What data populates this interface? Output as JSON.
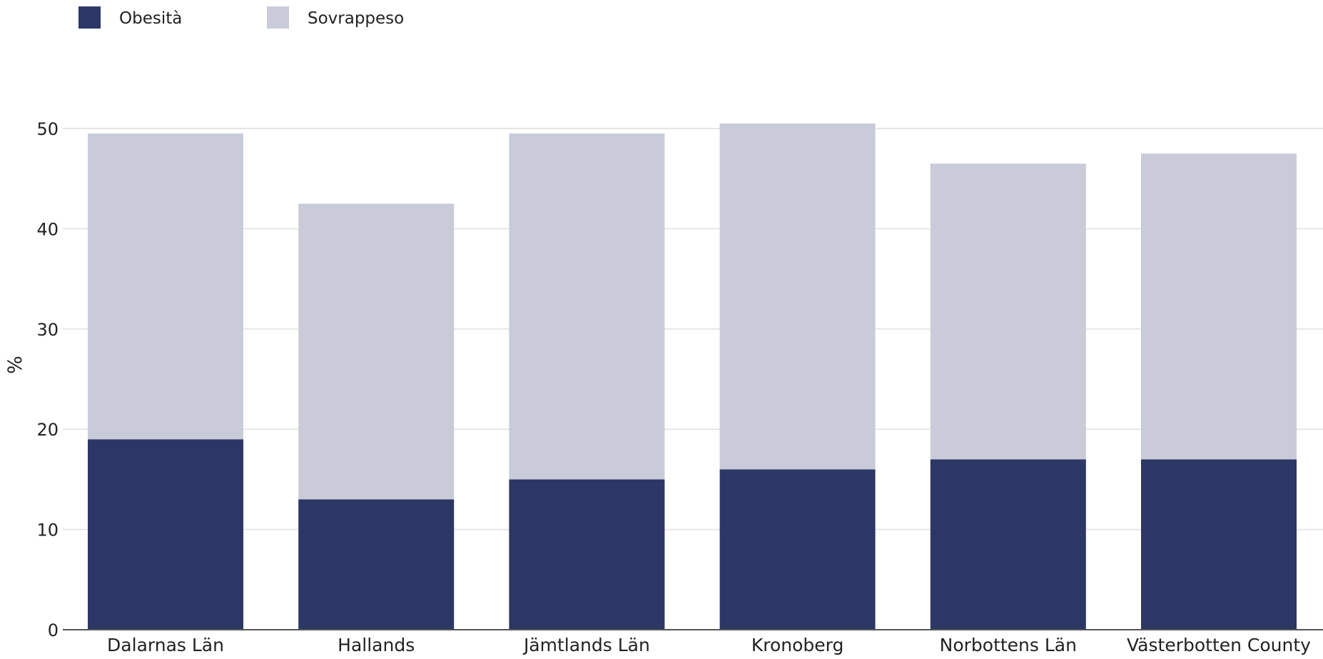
{
  "chart_data": {
    "type": "bar",
    "stacked": true,
    "categories": [
      "Dalarnas Län",
      "Hallands",
      "Jämtlands Län",
      "Kronoberg",
      "Norbottens Län",
      "Västerbotten County"
    ],
    "series": [
      {
        "name": "Obesità",
        "values": [
          19,
          13,
          15,
          16,
          17,
          17
        ],
        "color": "#2c3765"
      },
      {
        "name": "Sovrappeso",
        "values": [
          30.5,
          29.5,
          34.5,
          34.5,
          29.5,
          30.5
        ],
        "color": "#c9ccd8"
      }
    ],
    "ylabel": "%",
    "xlabel": "",
    "yticks": [
      0,
      10,
      20,
      30,
      40,
      50
    ],
    "ylim": [
      0,
      50
    ],
    "grid": true,
    "legend": "top-left"
  }
}
